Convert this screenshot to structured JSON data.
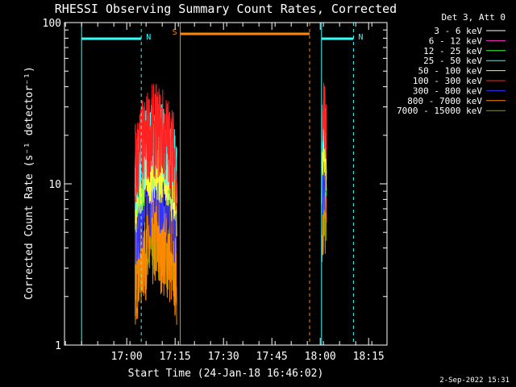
{
  "chart_data": {
    "type": "line",
    "title": "RHESSI Observing Summary Count Rates, Corrected",
    "xlabel": "Start Time (24-Jan-18 16:46:02)",
    "ylabel": "Corrected Count Rate (s⁻¹ detector⁻¹)",
    "yscale": "log",
    "ylim": [
      1,
      100
    ],
    "xlim_minutes_after_1646": [
      0,
      53
    ],
    "x_ticks": [
      {
        "label": "17:00",
        "min": 14
      },
      {
        "label": "17:15",
        "min": 29
      },
      {
        "label": "17:30",
        "min": 44
      },
      {
        "label": "17:45",
        "min": 59
      },
      {
        "label": "18:00",
        "min": 74
      },
      {
        "label": "18:15",
        "min": 89
      }
    ],
    "y_ticks": [
      {
        "label": "1",
        "value": 1
      },
      {
        "label": "10",
        "value": 10
      },
      {
        "label": "100",
        "value": 100
      }
    ],
    "legend_title": "Det 3, Att 0",
    "legend_position": "top-right",
    "series": [
      {
        "name": "3 - 6 keV",
        "color": "#ffffff",
        "seg1": {
          "start": 16.6,
          "end": 29.5,
          "level": 13.0,
          "spread": 0.25
        },
        "seg2": {
          "start": 74.4,
          "end": 75.9,
          "level": 18.0,
          "spread": 0.2
        }
      },
      {
        "name": "6 - 12 keV",
        "color": "#ff33cc",
        "seg1": {
          "start": 16.6,
          "end": 29.5,
          "level": 14.0,
          "spread": 0.25
        },
        "seg2": {
          "start": 74.4,
          "end": 75.9,
          "level": 19.0,
          "spread": 0.2
        }
      },
      {
        "name": "12 - 25 keV",
        "color": "#33ff33",
        "seg1": {
          "start": 16.6,
          "end": 29.5,
          "level": 12.0,
          "spread": 0.25
        },
        "seg2": {
          "start": 74.4,
          "end": 75.9,
          "level": 16.0,
          "spread": 0.2
        }
      },
      {
        "name": "25 - 50 keV",
        "color": "#33ffff",
        "seg1": {
          "start": 16.6,
          "end": 29.5,
          "level": 15.0,
          "spread": 0.25
        },
        "seg2": {
          "start": 74.4,
          "end": 75.9,
          "level": 20.0,
          "spread": 0.2
        }
      },
      {
        "name": "50 - 100 keV",
        "color": "#ffff33",
        "seg1": {
          "start": 16.6,
          "end": 29.5,
          "level": 11.0,
          "spread": 0.25
        },
        "seg2": {
          "start": 74.4,
          "end": 75.9,
          "level": 15.0,
          "spread": 0.2
        }
      },
      {
        "name": "100 - 300 keV",
        "color": "#ff2222",
        "seg1": {
          "start": 16.6,
          "end": 29.5,
          "level": 17.0,
          "spread": 0.3
        },
        "seg2": {
          "start": 74.4,
          "end": 75.9,
          "level": 23.0,
          "spread": 0.25
        }
      },
      {
        "name": "300 - 800 keV",
        "color": "#3333ff",
        "seg1": {
          "start": 16.6,
          "end": 29.5,
          "level": 7.5,
          "spread": 0.3
        },
        "seg2": {
          "start": 74.4,
          "end": 75.9,
          "level": 10.0,
          "spread": 0.3
        }
      },
      {
        "name": "800 - 7000 keV",
        "color": "#ff8800",
        "seg1": {
          "start": 16.6,
          "end": 29.5,
          "level": 3.8,
          "spread": 0.35
        },
        "seg2": {
          "start": 74.4,
          "end": 75.9,
          "level": 6.5,
          "spread": 0.35
        }
      },
      {
        "name": "7000 - 15000 keV",
        "color": "#999900",
        "seg1": {
          "start": 16.6,
          "end": 29.5,
          "level": 3.2,
          "spread": 0.2
        },
        "seg2": {
          "start": 74.4,
          "end": 75.9,
          "level": 5.0,
          "spread": 0.2
        }
      }
    ],
    "annotations": [
      {
        "kind": "night",
        "label": "N",
        "color": "#33ffff",
        "spans": [
          [
            0,
            18.5
          ],
          [
            74.4,
            84.3
          ]
        ]
      },
      {
        "kind": "saa",
        "label": "S",
        "color": "#ff8800",
        "spans": [
          [
            30.6,
            70.7
          ]
        ]
      }
    ],
    "markers": [
      {
        "min": 0,
        "color": "#33ffff",
        "style": "solid"
      },
      {
        "min": 18.5,
        "color": "#33ffff",
        "style": "dashed"
      },
      {
        "min": 30.6,
        "color": "#ff8800",
        "style": "solid"
      },
      {
        "min": 70.7,
        "color": "#ff8800",
        "style": "dashed"
      },
      {
        "min": 74.4,
        "color": "#33ffff",
        "style": "solid"
      },
      {
        "min": 84.3,
        "color": "#33ffff",
        "style": "dashed"
      }
    ]
  },
  "footer": "2-Sep-2022 15:31"
}
